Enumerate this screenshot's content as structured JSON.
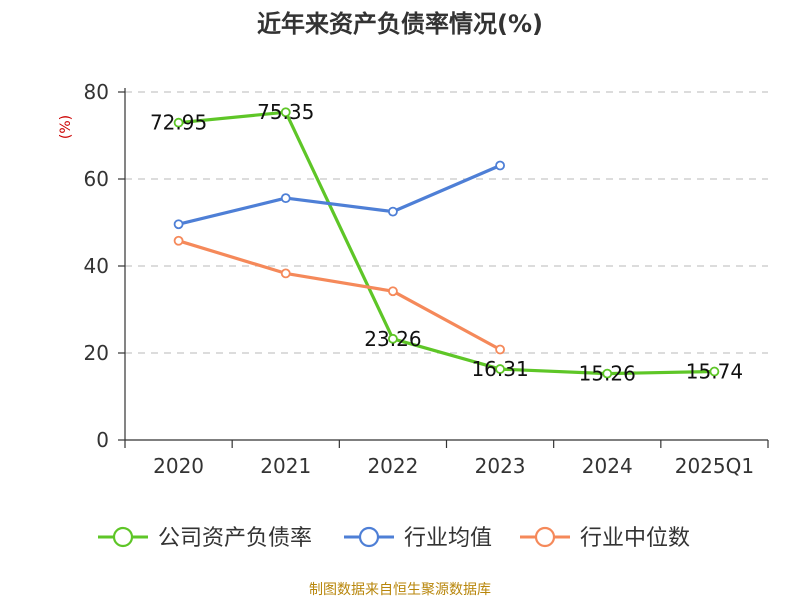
{
  "title": "近年来资产负债率情况(%)",
  "source": "制图数据来自恒生聚源数据库",
  "chart_data": {
    "type": "line",
    "ylabel": "(%)",
    "xlabel": "",
    "categories": [
      "2020",
      "2021",
      "2022",
      "2023",
      "2024",
      "2025Q1"
    ],
    "y_ticks": [
      "0",
      "20",
      "40",
      "60",
      "80"
    ],
    "ylim": [
      0,
      80
    ],
    "grid": true,
    "legend_position": "bottom",
    "series": [
      {
        "name": "公司资产负债率",
        "color": "#5ec627",
        "values": [
          72.95,
          75.35,
          23.26,
          16.31,
          15.26,
          15.74
        ],
        "labels": [
          "72.95",
          "75.35",
          "23.26",
          "16.31",
          "15.26",
          "15.74"
        ]
      },
      {
        "name": "行业均值",
        "color": "#4e7fd6",
        "values": [
          49.6,
          55.6,
          52.5,
          63.1,
          null,
          null
        ]
      },
      {
        "name": "行业中位数",
        "color": "#f5895a",
        "values": [
          45.8,
          38.3,
          34.2,
          20.8,
          null,
          null
        ]
      }
    ]
  }
}
